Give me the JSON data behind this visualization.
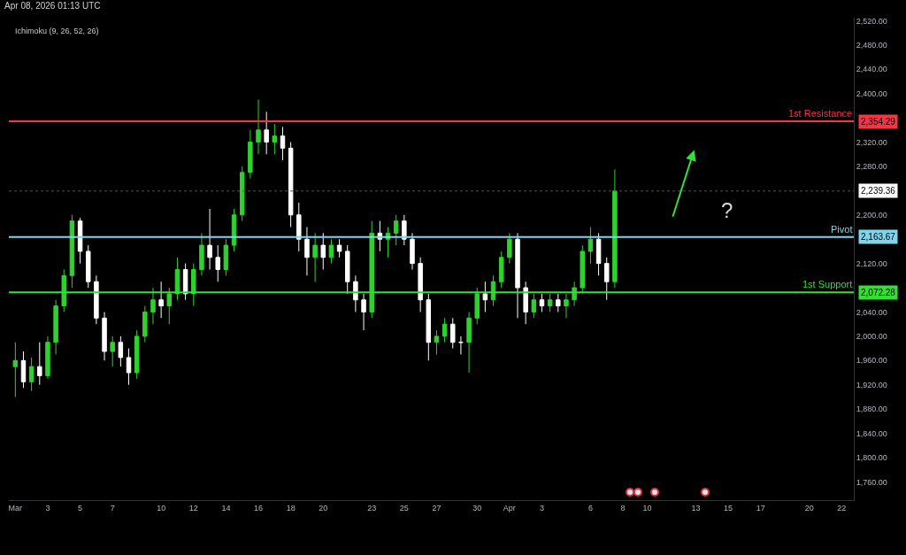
{
  "chart_data": {
    "type": "candlestick",
    "title": "Apr 08, 2026 01:13 UTC",
    "categories": [
      "Mar",
      null,
      null,
      null,
      "3",
      null,
      null,
      null,
      "5",
      null,
      null,
      null,
      "7",
      null,
      null,
      null,
      null,
      null,
      "10",
      null,
      null,
      null,
      "12",
      null,
      null,
      null,
      "14",
      null,
      null,
      null,
      "16",
      null,
      null,
      null,
      "18",
      null,
      null,
      null,
      "20",
      null,
      null,
      null,
      null,
      null,
      "23",
      null,
      null,
      null,
      "25",
      null,
      null,
      null,
      "27",
      null,
      null,
      null,
      null,
      "30",
      null,
      null,
      null,
      "Apr",
      null,
      null,
      null,
      "3",
      null,
      null,
      null,
      null,
      null,
      "6",
      null,
      null,
      null,
      "8",
      null,
      null,
      "10",
      null,
      null,
      null,
      null,
      null,
      "13",
      null,
      null,
      null,
      "15",
      null,
      null,
      null,
      "17",
      null,
      null,
      null,
      null,
      null,
      "20",
      null,
      null,
      null,
      "22",
      null
    ],
    "ohlc": [
      [
        1950,
        1990,
        1900,
        1960
      ],
      [
        1960,
        1975,
        1915,
        1925
      ],
      [
        1925,
        1965,
        1910,
        1950
      ],
      [
        1950,
        1990,
        1920,
        1935
      ],
      [
        1935,
        2000,
        1930,
        1990
      ],
      [
        1990,
        2060,
        1970,
        2050
      ],
      [
        2050,
        2110,
        2040,
        2100
      ],
      [
        2100,
        2200,
        2080,
        2190
      ],
      [
        2190,
        2195,
        2120,
        2140
      ],
      [
        2140,
        2150,
        2080,
        2090
      ],
      [
        2090,
        2100,
        2020,
        2030
      ],
      [
        2030,
        2040,
        1960,
        1975
      ],
      [
        1975,
        2000,
        1950,
        1990
      ],
      [
        1990,
        2000,
        1950,
        1965
      ],
      [
        1965,
        1980,
        1920,
        1940
      ],
      [
        1940,
        2010,
        1930,
        2000
      ],
      [
        2000,
        2050,
        1990,
        2040
      ],
      [
        2040,
        2080,
        2020,
        2060
      ],
      [
        2060,
        2090,
        2030,
        2050
      ],
      [
        2050,
        2080,
        2020,
        2070
      ],
      [
        2070,
        2130,
        2060,
        2110
      ],
      [
        2110,
        2120,
        2060,
        2070
      ],
      [
        2070,
        2120,
        2050,
        2110
      ],
      [
        2110,
        2170,
        2100,
        2150
      ],
      [
        2150,
        2210,
        2110,
        2130
      ],
      [
        2130,
        2150,
        2090,
        2110
      ],
      [
        2110,
        2160,
        2100,
        2150
      ],
      [
        2150,
        2210,
        2140,
        2200
      ],
      [
        2200,
        2280,
        2190,
        2270
      ],
      [
        2270,
        2340,
        2260,
        2320
      ],
      [
        2320,
        2390,
        2300,
        2340
      ],
      [
        2340,
        2370,
        2300,
        2320
      ],
      [
        2320,
        2350,
        2300,
        2330
      ],
      [
        2330,
        2345,
        2290,
        2310
      ],
      [
        2310,
        2320,
        2180,
        2200
      ],
      [
        2200,
        2220,
        2140,
        2160
      ],
      [
        2160,
        2180,
        2100,
        2130
      ],
      [
        2130,
        2170,
        2090,
        2150
      ],
      [
        2150,
        2170,
        2110,
        2130
      ],
      [
        2130,
        2160,
        2120,
        2150
      ],
      [
        2150,
        2160,
        2130,
        2140
      ],
      [
        2140,
        2150,
        2070,
        2090
      ],
      [
        2090,
        2100,
        2040,
        2060
      ],
      [
        2060,
        2070,
        2010,
        2040
      ],
      [
        2040,
        2190,
        2030,
        2170
      ],
      [
        2170,
        2190,
        2140,
        2160
      ],
      [
        2160,
        2180,
        2130,
        2170
      ],
      [
        2170,
        2200,
        2150,
        2190
      ],
      [
        2190,
        2200,
        2150,
        2160
      ],
      [
        2160,
        2170,
        2110,
        2120
      ],
      [
        2120,
        2130,
        2040,
        2060
      ],
      [
        2060,
        2070,
        1960,
        1990
      ],
      [
        1990,
        2010,
        1970,
        2000
      ],
      [
        2000,
        2030,
        1990,
        2020
      ],
      [
        2020,
        2030,
        1980,
        1990
      ],
      [
        1990,
        2000,
        1970,
        1990
      ],
      [
        1990,
        2040,
        1940,
        2030
      ],
      [
        2030,
        2080,
        2020,
        2070
      ],
      [
        2070,
        2090,
        2040,
        2060
      ],
      [
        2060,
        2100,
        2050,
        2090
      ],
      [
        2090,
        2140,
        2080,
        2130
      ],
      [
        2130,
        2170,
        2120,
        2160
      ],
      [
        2160,
        2170,
        2030,
        2080
      ],
      [
        2080,
        2090,
        2020,
        2040
      ],
      [
        2040,
        2070,
        2030,
        2060
      ],
      [
        2060,
        2070,
        2040,
        2050
      ],
      [
        2050,
        2070,
        2040,
        2060
      ],
      [
        2060,
        2070,
        2040,
        2050
      ],
      [
        2050,
        2070,
        2030,
        2060
      ],
      [
        2060,
        2090,
        2050,
        2080
      ],
      [
        2080,
        2150,
        2070,
        2140
      ],
      [
        2140,
        2180,
        2120,
        2160
      ],
      [
        2160,
        2170,
        2100,
        2120
      ],
      [
        2120,
        2130,
        2060,
        2090
      ],
      [
        2090,
        2275,
        2080,
        2239.36
      ],
      null,
      null,
      null,
      null,
      null,
      null,
      null,
      null,
      null,
      null,
      null,
      null,
      null,
      null,
      null,
      null,
      null,
      null,
      null,
      null,
      null,
      null,
      null,
      null,
      null,
      null,
      null,
      null,
      null
    ],
    "colors": [
      "#2fd12f",
      "#ffffff",
      "#2fd12f",
      "#ffffff",
      "#2fd12f",
      "#2fd12f",
      "#2fd12f",
      "#2fd12f",
      "#ffffff",
      "#ffffff",
      "#ffffff",
      "#ffffff",
      "#2fd12f",
      "#ffffff",
      "#ffffff",
      "#2fd12f",
      "#2fd12f",
      "#2fd12f",
      "#ffffff",
      "#2fd12f",
      "#2fd12f",
      "#ffffff",
      "#2fd12f",
      "#2fd12f",
      "#ffffff",
      "#ffffff",
      "#2fd12f",
      "#2fd12f",
      "#2fd12f",
      "#2fd12f",
      "#2fd12f",
      "#ffffff",
      "#2fd12f",
      "#ffffff",
      "#ffffff",
      "#ffffff",
      "#ffffff",
      "#2fd12f",
      "#ffffff",
      "#2fd12f",
      "#ffffff",
      "#ffffff",
      "#ffffff",
      "#ffffff",
      "#2fd12f",
      "#ffffff",
      "#2fd12f",
      "#2fd12f",
      "#ffffff",
      "#ffffff",
      "#ffffff",
      "#ffffff",
      "#2fd12f",
      "#2fd12f",
      "#ffffff",
      "#ffffff",
      "#2fd12f",
      "#2fd12f",
      "#ffffff",
      "#2fd12f",
      "#2fd12f",
      "#2fd12f",
      "#ffffff",
      "#ffffff",
      "#2fd12f",
      "#ffffff",
      "#2fd12f",
      "#ffffff",
      "#2fd12f",
      "#2fd12f",
      "#2fd12f",
      "#2fd12f",
      "#ffffff",
      "#ffffff",
      "#2fd12f",
      null,
      null,
      null,
      null,
      null,
      null,
      null,
      null,
      null,
      null,
      null,
      null,
      null,
      null,
      null,
      null,
      null,
      null,
      null,
      null,
      null,
      null,
      null,
      null,
      null,
      null,
      null,
      null,
      null
    ],
    "ylim": [
      1730,
      2525
    ],
    "yticks": [
      {
        "value": 1760,
        "label": "1,760.00"
      },
      {
        "value": 1800,
        "label": "1,800.00"
      },
      {
        "value": 1840,
        "label": "1,840.00"
      },
      {
        "value": 1880,
        "label": "1,880.00"
      },
      {
        "value": 1920,
        "label": "1,920.00"
      },
      {
        "value": 1960,
        "label": "1,960.00"
      },
      {
        "value": 2000,
        "label": "2,000.00"
      },
      {
        "value": 2040,
        "label": "2,040.00"
      },
      {
        "value": 2120,
        "label": "2,120.00"
      },
      {
        "value": 2200,
        "label": "2,200.00"
      },
      {
        "value": 2280,
        "label": "2,280.00"
      },
      {
        "value": 2320,
        "label": "2,320.00"
      },
      {
        "value": 2400,
        "label": "2,400.00"
      },
      {
        "value": 2440,
        "label": "2,440.00"
      },
      {
        "value": 2480,
        "label": "2,480.00"
      },
      {
        "value": 2520,
        "label": "2,520.00"
      }
    ],
    "ref_lines": [
      {
        "axis": "y",
        "value": 2354.29,
        "label": "1st Resistance",
        "color": "#f23645",
        "line_style": "solid"
      },
      {
        "axis": "y",
        "value": 2163.67,
        "label": "Pivot",
        "color": "#7dd6ec",
        "line_style": "solid"
      },
      {
        "axis": "y",
        "value": 2072.28,
        "label": "1st Support",
        "color": "#33e033",
        "line_style": "solid"
      },
      {
        "axis": "y",
        "value": 2239.36,
        "label": null,
        "color": "#555555",
        "line_style": "dotted"
      }
    ],
    "annotations": [
      "Ichimoku (9, 26, 52, 26)",
      "?",
      "2,354.29",
      "2,163.67",
      "2,072.28",
      "2,239.36"
    ],
    "grid": false
  }
}
